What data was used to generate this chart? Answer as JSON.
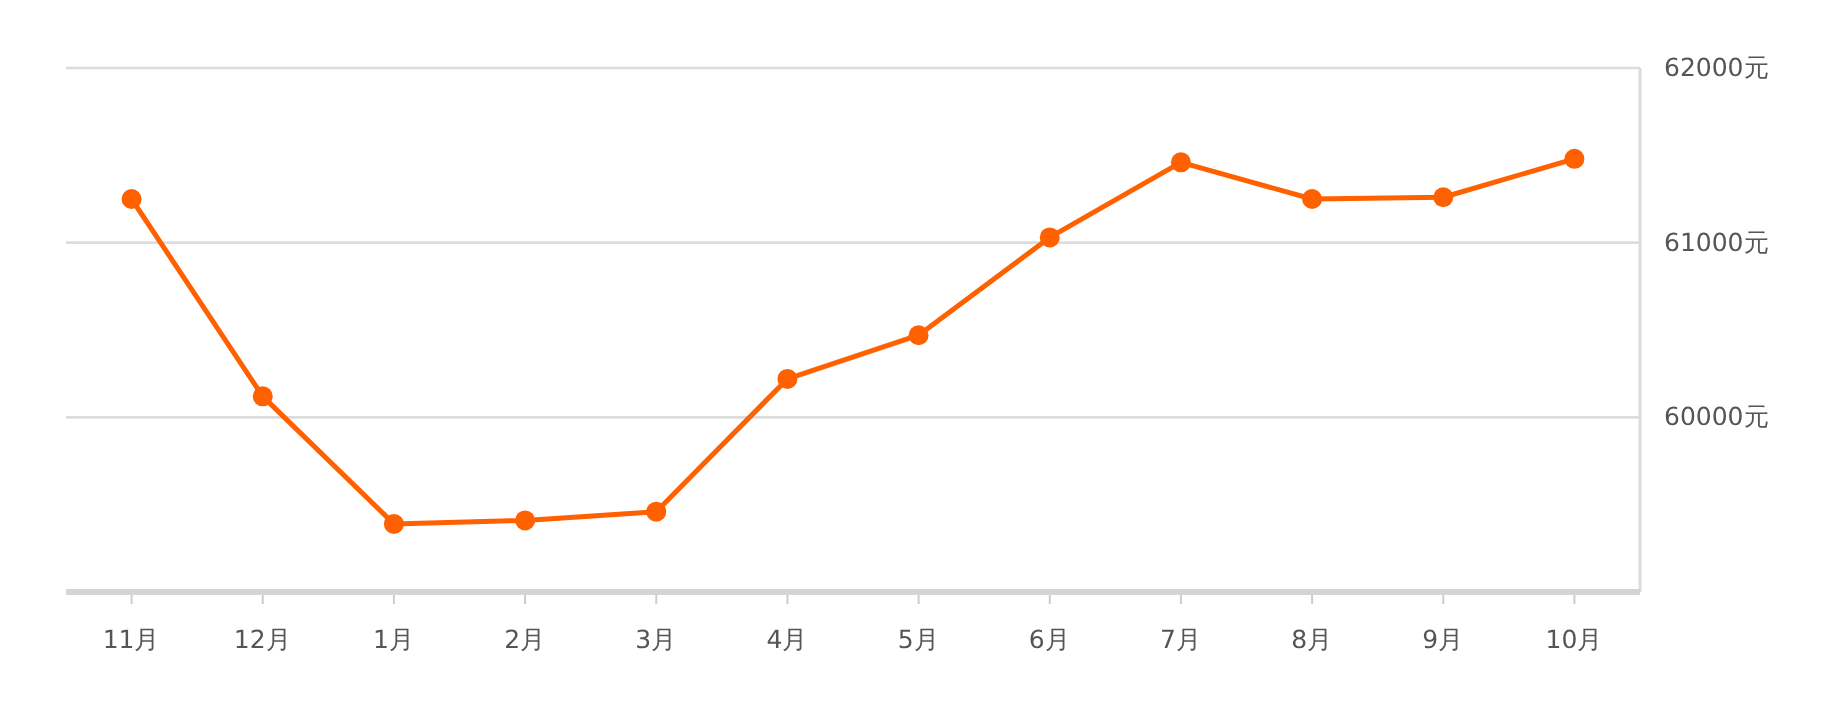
{
  "chart_data": {
    "type": "line",
    "categories": [
      "11月",
      "12月",
      "1月",
      "2月",
      "3月",
      "4月",
      "5月",
      "6月",
      "7月",
      "8月",
      "9月",
      "10月"
    ],
    "series": [
      {
        "color": "#ff6000",
        "values": [
          61250,
          60120,
          59390,
          59410,
          59460,
          60220,
          60470,
          61030,
          61460,
          61250,
          61260,
          61480
        ]
      }
    ],
    "ylim": [
      59000,
      62000
    ],
    "yticks": [
      {
        "value": 60000,
        "label": "60000元"
      },
      {
        "value": 61000,
        "label": "61000元"
      },
      {
        "value": 62000,
        "label": "62000元"
      }
    ],
    "grid": "y",
    "marker": "circle",
    "line_style": "solid"
  }
}
